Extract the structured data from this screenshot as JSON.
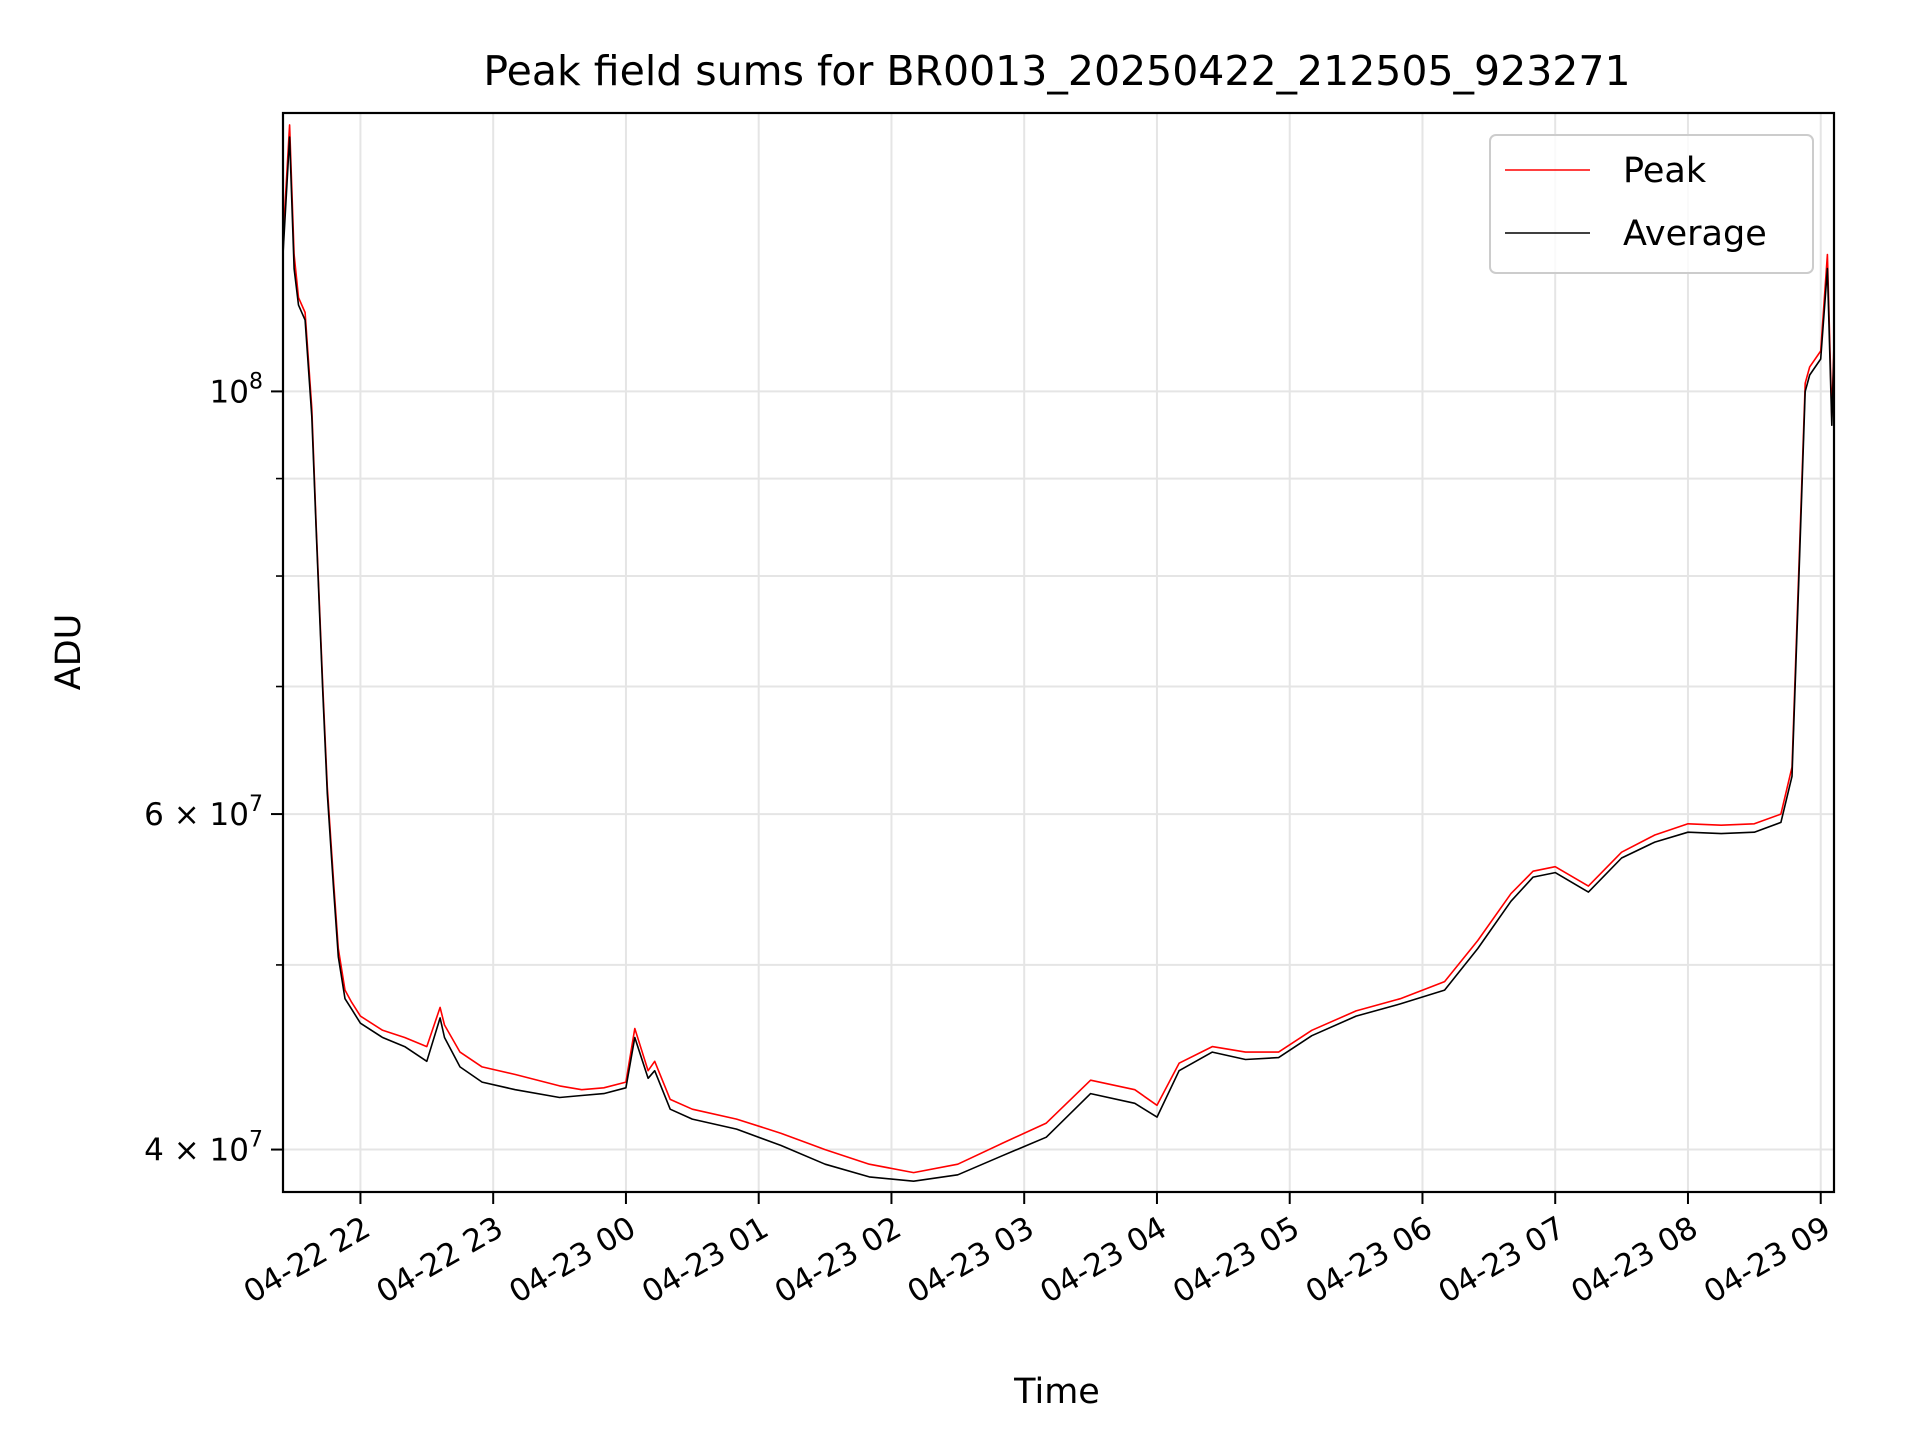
{
  "chart_data": {
    "type": "line",
    "title": "Peak field sums for BR0013_20250422_212505_923271",
    "xlabel": "Time",
    "ylabel": "ADU",
    "yscale": "log",
    "grid": true,
    "legend_position": "top-right",
    "xlim": [
      "2025-04-22 21:25",
      "2025-04-23 09:06"
    ],
    "ylim": [
      38000000,
      140000000
    ],
    "x_ticks": [
      {
        "value": "2025-04-22 22:00",
        "label": "04-22 22"
      },
      {
        "value": "2025-04-22 23:00",
        "label": "04-22 23"
      },
      {
        "value": "2025-04-23 00:00",
        "label": "04-23 00"
      },
      {
        "value": "2025-04-23 01:00",
        "label": "04-23 01"
      },
      {
        "value": "2025-04-23 02:00",
        "label": "04-23 02"
      },
      {
        "value": "2025-04-23 03:00",
        "label": "04-23 03"
      },
      {
        "value": "2025-04-23 04:00",
        "label": "04-23 04"
      },
      {
        "value": "2025-04-23 05:00",
        "label": "04-23 05"
      },
      {
        "value": "2025-04-23 06:00",
        "label": "04-23 06"
      },
      {
        "value": "2025-04-23 07:00",
        "label": "04-23 07"
      },
      {
        "value": "2025-04-23 08:00",
        "label": "04-23 08"
      },
      {
        "value": "2025-04-23 09:00",
        "label": "04-23 09"
      }
    ],
    "y_major_ticks": [
      {
        "value": 40000000,
        "mantissa": "4",
        "base": "10",
        "exp": "7"
      },
      {
        "value": 60000000,
        "mantissa": "6",
        "base": "10",
        "exp": "7"
      },
      {
        "value": 100000000,
        "mantissa": "",
        "base": "10",
        "exp": "8"
      }
    ],
    "y_minor_ticks": [
      50000000,
      70000000,
      80000000,
      90000000
    ],
    "series": [
      {
        "name": "Peak",
        "color": "#ff0000",
        "x": [
          "2025-04-22 21:25",
          "2025-04-22 21:28",
          "2025-04-22 21:30",
          "2025-04-22 21:32",
          "2025-04-22 21:35",
          "2025-04-22 21:38",
          "2025-04-22 21:40",
          "2025-04-22 21:43",
          "2025-04-22 21:45",
          "2025-04-22 21:48",
          "2025-04-22 21:50",
          "2025-04-22 21:53",
          "2025-04-22 21:56",
          "2025-04-22 22:00",
          "2025-04-22 22:10",
          "2025-04-22 22:20",
          "2025-04-22 22:30",
          "2025-04-22 22:36",
          "2025-04-22 22:38",
          "2025-04-22 22:45",
          "2025-04-22 22:55",
          "2025-04-22 23:10",
          "2025-04-22 23:30",
          "2025-04-22 23:40",
          "2025-04-22 23:50",
          "2025-04-23 00:00",
          "2025-04-23 00:04",
          "2025-04-23 00:10",
          "2025-04-23 00:13",
          "2025-04-23 00:20",
          "2025-04-23 00:30",
          "2025-04-23 00:50",
          "2025-04-23 01:10",
          "2025-04-23 01:30",
          "2025-04-23 01:50",
          "2025-04-23 02:10",
          "2025-04-23 02:30",
          "2025-04-23 02:50",
          "2025-04-23 03:10",
          "2025-04-23 03:30",
          "2025-04-23 03:50",
          "2025-04-23 04:00",
          "2025-04-23 04:10",
          "2025-04-23 04:25",
          "2025-04-23 04:40",
          "2025-04-23 04:55",
          "2025-04-23 05:10",
          "2025-04-23 05:30",
          "2025-04-23 05:50",
          "2025-04-23 06:10",
          "2025-04-23 06:25",
          "2025-04-23 06:40",
          "2025-04-23 06:50",
          "2025-04-23 07:00",
          "2025-04-23 07:15",
          "2025-04-23 07:30",
          "2025-04-23 07:45",
          "2025-04-23 08:00",
          "2025-04-23 08:15",
          "2025-04-23 08:30",
          "2025-04-23 08:42",
          "2025-04-23 08:47",
          "2025-04-23 08:50",
          "2025-04-23 08:53",
          "2025-04-23 08:55",
          "2025-04-23 09:00",
          "2025-04-23 09:03",
          "2025-04-23 09:05",
          "2025-04-23 09:06"
        ],
        "y": [
          120000000,
          138000000,
          118000000,
          112000000,
          110000000,
          98000000,
          85000000,
          70000000,
          62000000,
          55000000,
          51000000,
          48500000,
          47800000,
          47000000,
          46200000,
          45800000,
          45300000,
          47500000,
          46500000,
          45000000,
          44200000,
          43800000,
          43200000,
          43000000,
          43100000,
          43400000,
          46300000,
          44000000,
          44500000,
          42500000,
          42000000,
          41500000,
          40800000,
          40000000,
          39300000,
          38900000,
          39300000,
          40300000,
          41300000,
          43500000,
          43000000,
          42200000,
          44400000,
          45300000,
          45000000,
          45000000,
          46200000,
          47300000,
          48000000,
          49000000,
          51500000,
          54500000,
          56000000,
          56300000,
          55000000,
          57300000,
          58500000,
          59300000,
          59200000,
          59300000,
          60000000,
          63500000,
          80000000,
          101000000,
          103000000,
          105000000,
          118000000,
          97000000,
          106000000
        ]
      },
      {
        "name": "Average",
        "color": "#000000",
        "x": [
          "2025-04-22 21:25",
          "2025-04-22 21:28",
          "2025-04-22 21:30",
          "2025-04-22 21:32",
          "2025-04-22 21:35",
          "2025-04-22 21:38",
          "2025-04-22 21:40",
          "2025-04-22 21:43",
          "2025-04-22 21:45",
          "2025-04-22 21:48",
          "2025-04-22 21:50",
          "2025-04-22 21:53",
          "2025-04-22 21:56",
          "2025-04-22 22:00",
          "2025-04-22 22:10",
          "2025-04-22 22:20",
          "2025-04-22 22:30",
          "2025-04-22 22:36",
          "2025-04-22 22:38",
          "2025-04-22 22:45",
          "2025-04-22 22:55",
          "2025-04-22 23:10",
          "2025-04-22 23:30",
          "2025-04-22 23:40",
          "2025-04-22 23:50",
          "2025-04-23 00:00",
          "2025-04-23 00:04",
          "2025-04-23 00:10",
          "2025-04-23 00:13",
          "2025-04-23 00:20",
          "2025-04-23 00:30",
          "2025-04-23 00:50",
          "2025-04-23 01:10",
          "2025-04-23 01:30",
          "2025-04-23 01:50",
          "2025-04-23 02:10",
          "2025-04-23 02:30",
          "2025-04-23 02:50",
          "2025-04-23 03:10",
          "2025-04-23 03:30",
          "2025-04-23 03:50",
          "2025-04-23 04:00",
          "2025-04-23 04:10",
          "2025-04-23 04:25",
          "2025-04-23 04:40",
          "2025-04-23 04:55",
          "2025-04-23 05:10",
          "2025-04-23 05:30",
          "2025-04-23 05:50",
          "2025-04-23 06:10",
          "2025-04-23 06:25",
          "2025-04-23 06:40",
          "2025-04-23 06:50",
          "2025-04-23 07:00",
          "2025-04-23 07:15",
          "2025-04-23 07:30",
          "2025-04-23 07:45",
          "2025-04-23 08:00",
          "2025-04-23 08:15",
          "2025-04-23 08:30",
          "2025-04-23 08:42",
          "2025-04-23 08:47",
          "2025-04-23 08:50",
          "2025-04-23 08:53",
          "2025-04-23 08:55",
          "2025-04-23 09:00",
          "2025-04-23 09:03",
          "2025-04-23 09:05",
          "2025-04-23 09:06"
        ],
        "y": [
          118000000,
          136000000,
          116000000,
          111000000,
          109000000,
          97000000,
          84500000,
          69500000,
          61500000,
          54500000,
          50500000,
          48000000,
          47400000,
          46600000,
          45800000,
          45300000,
          44500000,
          46900000,
          45800000,
          44200000,
          43400000,
          43000000,
          42600000,
          42700000,
          42800000,
          43100000,
          45800000,
          43600000,
          44000000,
          42000000,
          41500000,
          41000000,
          40200000,
          39300000,
          38700000,
          38500000,
          38800000,
          39700000,
          40600000,
          42800000,
          42300000,
          41600000,
          44000000,
          45000000,
          44600000,
          44700000,
          45900000,
          47000000,
          47700000,
          48500000,
          51000000,
          54000000,
          55600000,
          55900000,
          54600000,
          56900000,
          58000000,
          58700000,
          58600000,
          58700000,
          59400000,
          62800000,
          79000000,
          100000000,
          102000000,
          104000000,
          116000000,
          96000000,
          105000000
        ]
      }
    ]
  }
}
